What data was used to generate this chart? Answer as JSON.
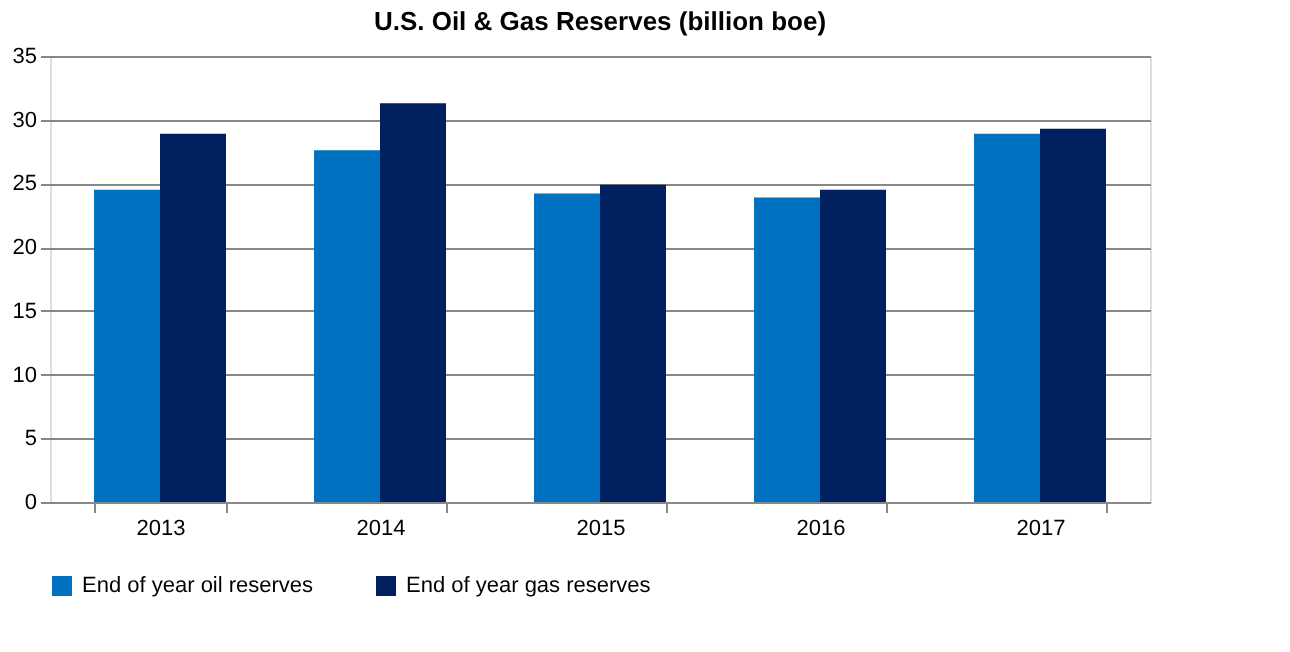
{
  "chart_data": {
    "type": "bar",
    "title": "U.S. Oil & Gas Reserves (billion boe)",
    "categories": [
      "2013",
      "2014",
      "2015",
      "2016",
      "2017"
    ],
    "series": [
      {
        "name": "End of year oil reserves",
        "color": "#0070c0",
        "values": [
          24.5,
          27.6,
          24.2,
          23.9,
          28.9
        ]
      },
      {
        "name": "End of year gas reserves",
        "color": "#002060",
        "values": [
          28.9,
          31.3,
          24.9,
          24.5,
          29.3
        ]
      }
    ],
    "ylim": [
      0,
      35
    ],
    "yticks": [
      0,
      5,
      10,
      15,
      20,
      25,
      30,
      35
    ],
    "grid": "y",
    "legend": "bottom"
  }
}
